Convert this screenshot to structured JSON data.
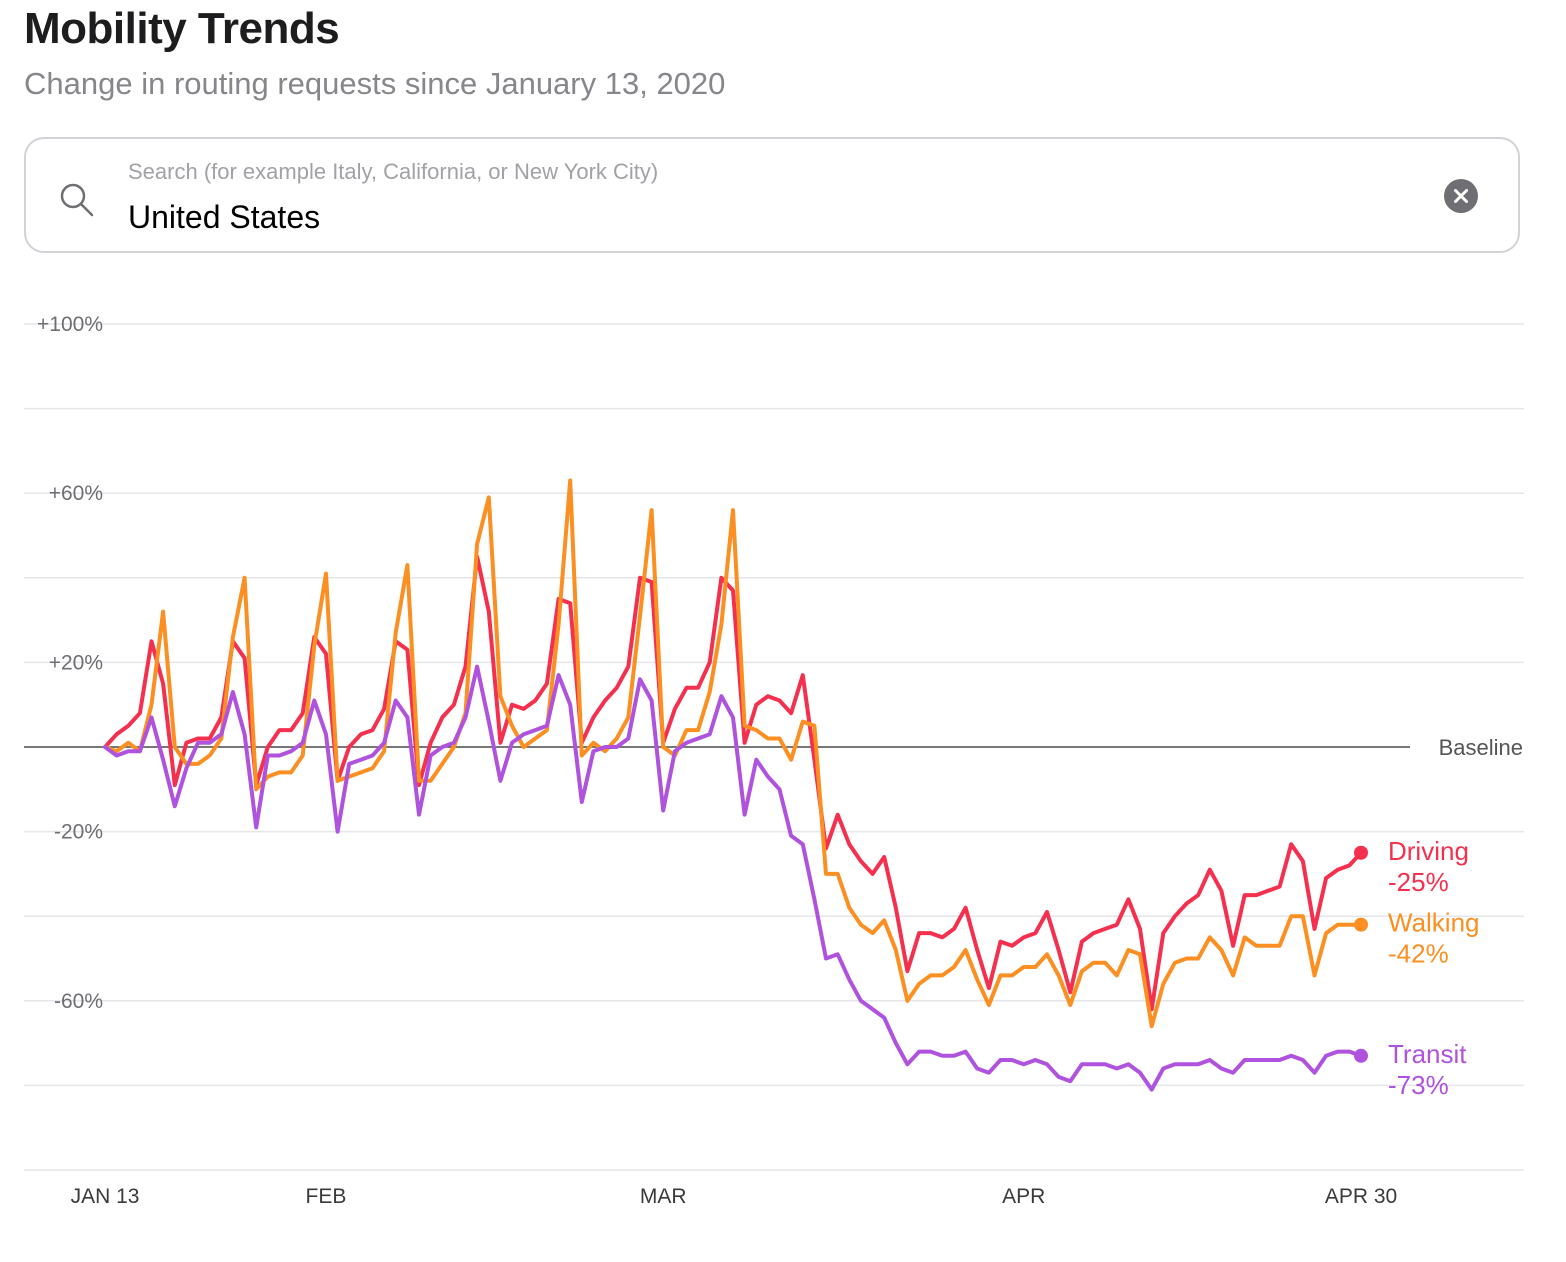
{
  "header": {
    "title": "Mobility Trends",
    "subtitle": "Change in routing requests since January 13, 2020"
  },
  "search": {
    "placeholder": "Search (for example Italy, California, or New York City)",
    "value": "United States",
    "search_icon": "search-icon",
    "clear_icon": "close-icon"
  },
  "chart_data": {
    "type": "line",
    "baseline_label": "Baseline",
    "y_ticks": [
      "+100%",
      "+60%",
      "+20%",
      "-20%",
      "-60%"
    ],
    "y_tick_values": [
      100,
      60,
      20,
      -20,
      -60
    ],
    "ylim": [
      -100,
      100
    ],
    "grid": true,
    "x_range": [
      0,
      108
    ],
    "x_ticks": [
      {
        "label": "JAN 13",
        "day": 0
      },
      {
        "label": "FEB",
        "day": 19
      },
      {
        "label": "MAR",
        "day": 48
      },
      {
        "label": "APR",
        "day": 79
      },
      {
        "label": "APR 30",
        "day": 108
      }
    ],
    "series": [
      {
        "name": "Driving",
        "end_value": "-25%",
        "color": "#f5304f",
        "values": [
          0,
          3,
          5,
          8,
          25,
          15,
          -9,
          1,
          2,
          2,
          7,
          25,
          21,
          -9,
          0,
          4,
          4,
          8,
          26,
          22,
          -8,
          0,
          3,
          4,
          9,
          25,
          23,
          -9,
          1,
          7,
          10,
          19,
          45,
          32,
          1,
          10,
          9,
          11,
          15,
          35,
          34,
          1,
          7,
          11,
          14,
          19,
          40,
          39,
          1,
          9,
          14,
          14,
          20,
          40,
          37,
          1,
          10,
          12,
          11,
          8,
          17,
          -3,
          -24,
          -16,
          -23,
          -27,
          -30,
          -26,
          -38,
          -53,
          -44,
          -44,
          -45,
          -43,
          -38,
          -48,
          -57,
          -46,
          -47,
          -45,
          -44,
          -39,
          -48,
          -58,
          -46,
          -44,
          -43,
          -42,
          -36,
          -43,
          -62,
          -44,
          -40,
          -37,
          -35,
          -29,
          -34,
          -47,
          -35,
          -35,
          -34,
          -33,
          -23,
          -27,
          -43,
          -31,
          -29,
          -28,
          -25
        ]
      },
      {
        "name": "Walking",
        "end_value": "-42%",
        "color": "#fb8f22",
        "values": [
          0,
          -1,
          1,
          -1,
          10,
          32,
          0,
          -4,
          -4,
          -2,
          2,
          26,
          40,
          -10,
          -7,
          -6,
          -6,
          -2,
          24,
          41,
          -8,
          -7,
          -6,
          -5,
          -1,
          27,
          43,
          -8,
          -8,
          -4,
          0,
          8,
          48,
          59,
          12,
          5,
          0,
          2,
          4,
          29,
          63,
          -2,
          1,
          -1,
          2,
          7,
          31,
          56,
          0,
          -2,
          4,
          4,
          13,
          29,
          56,
          5,
          4,
          2,
          2,
          -3,
          6,
          5,
          -30,
          -30,
          -38,
          -42,
          -44,
          -41,
          -48,
          -60,
          -56,
          -54,
          -54,
          -52,
          -48,
          -55,
          -61,
          -54,
          -54,
          -52,
          -52,
          -49,
          -54,
          -61,
          -53,
          -51,
          -51,
          -54,
          -48,
          -49,
          -66,
          -56,
          -51,
          -50,
          -50,
          -45,
          -48,
          -54,
          -45,
          -47,
          -47,
          -47,
          -40,
          -40,
          -54,
          -44,
          -42,
          -42,
          -42
        ]
      },
      {
        "name": "Transit",
        "end_value": "-73%",
        "color": "#af52de",
        "values": [
          0,
          -2,
          -1,
          -1,
          7,
          -3,
          -14,
          -5,
          1,
          1,
          3,
          13,
          3,
          -19,
          -2,
          -2,
          -1,
          1,
          11,
          3,
          -20,
          -4,
          -3,
          -2,
          1,
          11,
          7,
          -16,
          -2,
          0,
          1,
          7,
          19,
          6,
          -8,
          1,
          3,
          4,
          5,
          17,
          10,
          -13,
          -1,
          0,
          0,
          2,
          16,
          11,
          -15,
          -1,
          1,
          2,
          3,
          12,
          7,
          -16,
          -3,
          -7,
          -10,
          -21,
          -23,
          -36,
          -50,
          -49,
          -55,
          -60,
          -62,
          -64,
          -70,
          -75,
          -72,
          -72,
          -73,
          -73,
          -72,
          -76,
          -77,
          -74,
          -74,
          -75,
          -74,
          -75,
          -78,
          -79,
          -75,
          -75,
          -75,
          -76,
          -75,
          -77,
          -81,
          -76,
          -75,
          -75,
          -75,
          -74,
          -76,
          -77,
          -74,
          -74,
          -74,
          -74,
          -73,
          -74,
          -77,
          -73,
          -72,
          -72,
          -73
        ]
      }
    ]
  }
}
